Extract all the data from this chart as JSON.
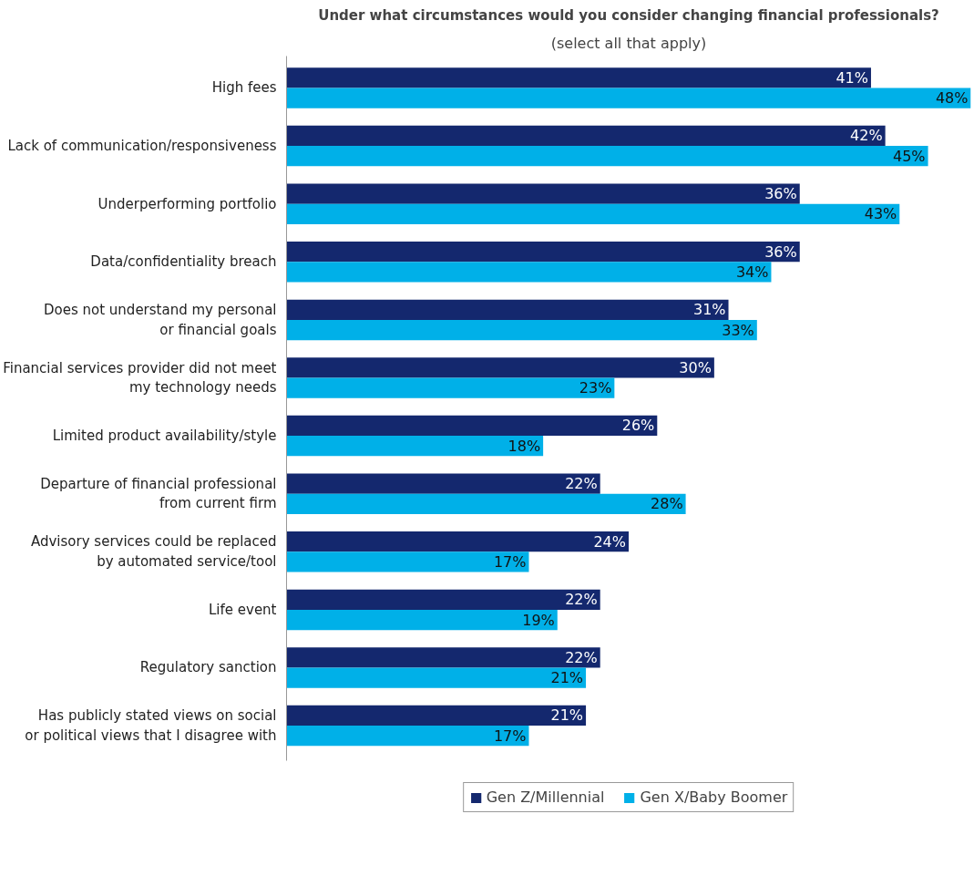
{
  "chart_data": {
    "type": "bar",
    "orientation": "horizontal",
    "title": "Under what circumstances would you consider changing financial professionals?",
    "subtitle": "(select all that apply)",
    "categories": [
      "High fees",
      "Lack of communication/responsiveness",
      "Underperforming portfolio",
      "Data/confidentiality breach",
      "Does not understand my personal\nor financial goals",
      "Financial services provider did not meet\nmy technology needs",
      "Limited product availability/style",
      "Departure of financial professional\nfrom current firm",
      "Advisory services could be replaced\nby automated service/tool",
      "Life event",
      "Regulatory sanction",
      "Has publicly stated views on social\nor political views that I disagree with"
    ],
    "series": [
      {
        "name": "Gen Z/Millennial",
        "color": "#14286e",
        "values": [
          41,
          42,
          36,
          36,
          31,
          30,
          26,
          22,
          24,
          22,
          22,
          21
        ],
        "value_labels": [
          "41%",
          "42%",
          "36%",
          "36%",
          "31%",
          "30%",
          "26%",
          "22%",
          "24%",
          "22%",
          "22%",
          "21%"
        ]
      },
      {
        "name": "Gen X/Baby Boomer",
        "color": "#00b0e8",
        "values": [
          48,
          45,
          43,
          34,
          33,
          23,
          18,
          28,
          17,
          19,
          21,
          17
        ],
        "value_labels": [
          "48%",
          "45%",
          "43%",
          "34%",
          "33%",
          "23%",
          "18%",
          "28%",
          "17%",
          "19%",
          "21%",
          "17%"
        ]
      }
    ],
    "xlim": [
      0,
      48
    ],
    "tick_labels": "y",
    "grid": false,
    "legend": "bottom"
  }
}
